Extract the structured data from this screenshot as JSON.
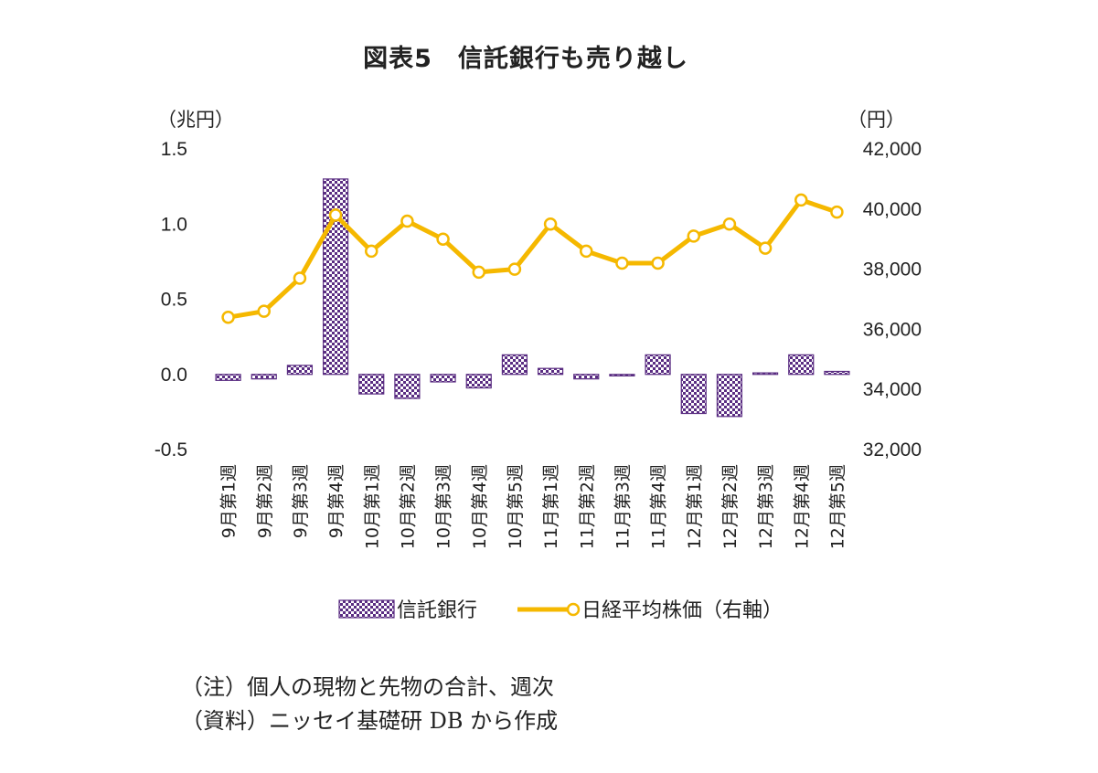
{
  "title": "図表5　信託銀行も売り越し",
  "axes": {
    "left_unit": "（兆円）",
    "right_unit": "（円）"
  },
  "notes": [
    "（注）個人の現物と先物の合計、週次",
    "（資料）ニッセイ基礎研 DB から作成"
  ],
  "colors": {
    "bar_fill": "#5a2d82",
    "bar_light": "#ffffff",
    "line": "#f5b800",
    "marker_fill": "#ffffff"
  },
  "chart_data": {
    "type": "bar+line",
    "categories": [
      "9月第1週",
      "9月第2週",
      "9月第3週",
      "9月第4週",
      "10月第1週",
      "10月第2週",
      "10月第3週",
      "10月第4週",
      "10月第5週",
      "11月第1週",
      "11月第2週",
      "11月第3週",
      "11月第4週",
      "12月第1週",
      "12月第2週",
      "12月第3週",
      "12月第4週",
      "12月第5週"
    ],
    "series": [
      {
        "name": "信託銀行",
        "type": "bar",
        "axis": "left",
        "values": [
          -0.04,
          -0.03,
          0.06,
          1.3,
          -0.13,
          -0.16,
          -0.05,
          -0.09,
          0.13,
          0.04,
          -0.03,
          -0.01,
          0.13,
          -0.26,
          -0.28,
          0.01,
          0.13,
          0.02
        ]
      },
      {
        "name": "日経平均株価（右軸）",
        "type": "line",
        "axis": "right",
        "values": [
          36400,
          36600,
          37700,
          39800,
          38600,
          39600,
          39000,
          37900,
          38000,
          39500,
          38600,
          38200,
          38200,
          39100,
          39500,
          38700,
          40300,
          39900
        ]
      }
    ],
    "left_axis": {
      "min": -0.5,
      "max": 1.5,
      "ticks": [
        "-0.5",
        "0.0",
        "0.5",
        "1.0",
        "1.5"
      ]
    },
    "right_axis": {
      "min": 32000,
      "max": 42000,
      "ticks": [
        "32,000",
        "34,000",
        "36,000",
        "38,000",
        "40,000",
        "42,000"
      ]
    },
    "legend": [
      "信託銀行",
      "日経平均株価（右軸）"
    ],
    "legend_position": "bottom",
    "grid": false
  }
}
